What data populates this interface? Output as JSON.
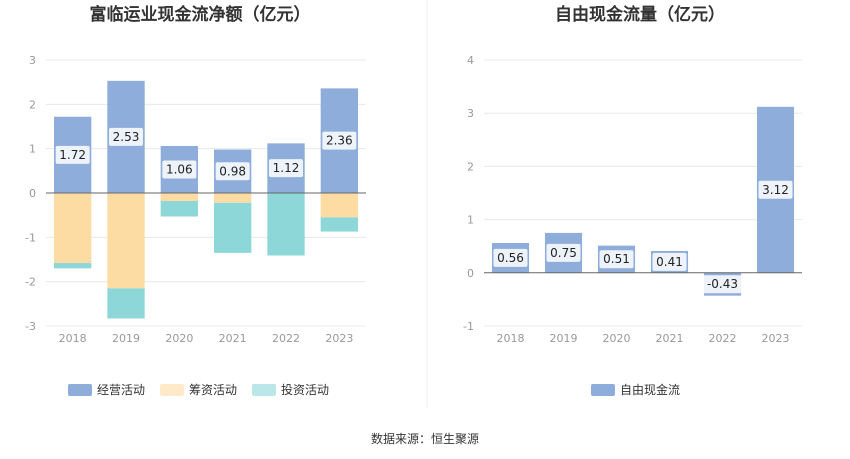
{
  "source_text": "数据来源：恒生聚源",
  "chart_data": [
    {
      "type": "bar",
      "stacked": true,
      "title": "富临运业现金流净额（亿元）",
      "categories": [
        "2018",
        "2019",
        "2020",
        "2021",
        "2022",
        "2023"
      ],
      "ylim": [
        -3,
        3
      ],
      "yticks": [
        3,
        2,
        1,
        0,
        -1,
        -2,
        -3
      ],
      "grid": true,
      "legend_position": "bottom",
      "series": [
        {
          "name": "经营活动",
          "color": "#8eadda",
          "values": [
            1.72,
            2.53,
            1.06,
            0.98,
            1.12,
            2.36
          ],
          "show_labels": true
        },
        {
          "name": "筹资活动",
          "color": "#fddca4",
          "values": [
            -1.58,
            -2.15,
            -0.18,
            -0.22,
            -0.01,
            -0.55
          ],
          "show_labels": false
        },
        {
          "name": "投资活动",
          "color": "#8dd7d9",
          "values": [
            -0.12,
            -0.68,
            -0.35,
            -1.13,
            -1.4,
            -0.32
          ],
          "show_labels": false
        }
      ]
    },
    {
      "type": "bar",
      "title": "自由现金流量（亿元）",
      "categories": [
        "2018",
        "2019",
        "2020",
        "2021",
        "2022",
        "2023"
      ],
      "ylim": [
        -1,
        4
      ],
      "yticks": [
        4,
        3,
        2,
        1,
        0,
        -1
      ],
      "grid": true,
      "legend_position": "bottom",
      "series": [
        {
          "name": "自由现金流",
          "color": "#8eadda",
          "values": [
            0.56,
            0.75,
            0.51,
            0.41,
            -0.43,
            3.12
          ],
          "show_labels": true
        }
      ]
    }
  ]
}
